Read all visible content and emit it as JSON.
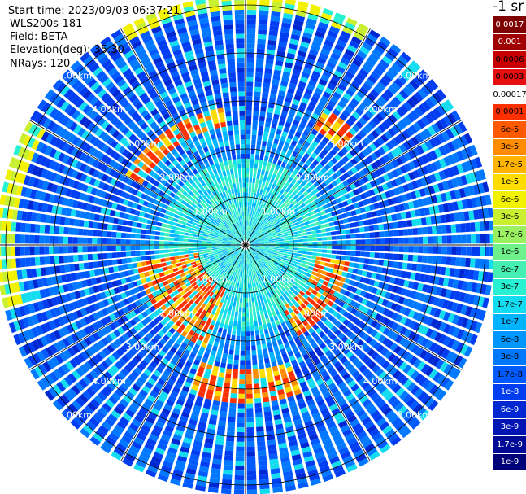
{
  "header": {
    "start_time": "Start time: 2023/09/03 06:37:21",
    "instrument": "WLS200s-181",
    "field": "Field: BETA",
    "elevation": "Elevation(deg): 35.30",
    "nrays": "NRays: 120"
  },
  "colorbar": {
    "unit": "-1 sr",
    "labels": [
      "0.0017",
      "0.001",
      "0.0006",
      "0.0003",
      "0.00017",
      "0.0001",
      "6e-5",
      "3e-5",
      "1.7e-5",
      "1e-5",
      "6e-6",
      "3e-6",
      "1.7e-6",
      "1e-6",
      "6e-7",
      "3e-7",
      "1.7e-7",
      "1e-7",
      "6e-8",
      "3e-8",
      "1.7e-8",
      "1e-8",
      "6e-9",
      "3e-9",
      "1.7e-9",
      "1e-9"
    ],
    "colors": [
      "#7f0000",
      "#a00000",
      "#c80000",
      "#e61010",
      "#ffffff",
      "#ff3000",
      "#ff5a00",
      "#ff8c00",
      "#ffb400",
      "#ffdc00",
      "#f2f200",
      "#c8f030",
      "#9af060",
      "#6ef08a",
      "#46f0b4",
      "#28f0d2",
      "#14dcf0",
      "#00b4ff",
      "#0096ff",
      "#0078ff",
      "#005aff",
      "#003cf0",
      "#0028d2",
      "#0014b4",
      "#000a96",
      "#000078"
    ],
    "text_colors": [
      "#ffffff",
      "#ffffff",
      "#000000",
      "#000000",
      "#000000",
      "#000000",
      "#000000",
      "#000000",
      "#000000",
      "#000000",
      "#000000",
      "#000000",
      "#000000",
      "#000000",
      "#000000",
      "#000000",
      "#000000",
      "#000000",
      "#000000",
      "#000000",
      "#000000",
      "#ffffff",
      "#ffffff",
      "#ffffff",
      "#ffffff",
      "#ffffff"
    ]
  },
  "chart_data": {
    "type": "heatmap",
    "projection": "polar PPI scan",
    "rays": 120,
    "range_rings_km": [
      1,
      2,
      3,
      4,
      5
    ],
    "range_labels": [
      "1.00km",
      "2.00km",
      "3.00km",
      "4.00km",
      "5.00km"
    ],
    "max_range_km": 5.2,
    "field": "BETA",
    "color_scale": "log",
    "value_range": [
      1e-09,
      0.0017
    ],
    "features": [
      {
        "description": "high backscatter arc",
        "azimuth_range_deg": [
          200,
          260
        ],
        "range_km": [
          1.0,
          2.3
        ],
        "level": "3e-5 to 1e-4"
      },
      {
        "description": "high backscatter arc",
        "azimuth_range_deg": [
          100,
          150
        ],
        "range_km": [
          1.5,
          2.2
        ],
        "level": "3e-5 to 1e-4"
      },
      {
        "description": "high backscatter cluster",
        "azimuth_range_deg": [
          160,
          200
        ],
        "range_km": [
          2.6,
          3.3
        ],
        "level": "1e-5 to 1e-4"
      },
      {
        "description": "high backscatter arc",
        "azimuth_range_deg": [
          300,
          350
        ],
        "range_km": [
          2.5,
          2.9
        ],
        "level": "1e-5 to 1e-4"
      },
      {
        "description": "high backscatter cluster",
        "azimuth_range_deg": [
          30,
          45
        ],
        "range_km": [
          2.8,
          3.3
        ],
        "level": "1e-5 to 3e-5"
      },
      {
        "description": "elevated band",
        "azimuth_range_deg": [
          255,
          300
        ],
        "range_km": [
          4.8,
          5.2
        ],
        "level": "1e-6 to 1e-5"
      },
      {
        "description": "elevated band",
        "azimuth_range_deg": [
          330,
          30
        ],
        "range_km": [
          4.9,
          5.2
        ],
        "level": "1e-6 to 1e-5"
      }
    ]
  }
}
